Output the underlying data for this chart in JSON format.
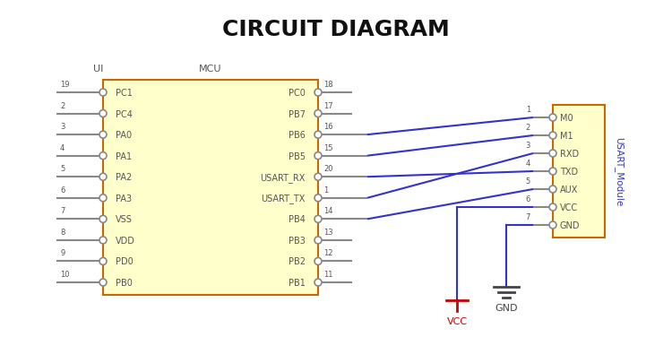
{
  "title": "CIRCUIT DIAGRAM",
  "title_fontsize": 18,
  "title_fontweight": "bold",
  "bg_color": "#ffffff",
  "mcu_fill": "#ffffcc",
  "mcu_edge": "#cc6600",
  "usart_fill": "#ffffcc",
  "usart_edge": "#cc6600",
  "mcu_label": "MCU",
  "ui_label": "UI",
  "usart_label": "USART_Module",
  "pin_color": "#888888",
  "wire_color": "#3333cc",
  "vcc_color": "#cc0000",
  "gnd_color": "#444444",
  "text_color": "#555555",
  "left_pins": [
    {
      "num": "19",
      "name": "PC1"
    },
    {
      "num": "2",
      "name": "PC4"
    },
    {
      "num": "3",
      "name": "PA0"
    },
    {
      "num": "4",
      "name": "PA1"
    },
    {
      "num": "5",
      "name": "PA2"
    },
    {
      "num": "6",
      "name": "PA3"
    },
    {
      "num": "7",
      "name": "VSS"
    },
    {
      "num": "8",
      "name": "VDD"
    },
    {
      "num": "9",
      "name": "PD0"
    },
    {
      "num": "10",
      "name": "PB0"
    }
  ],
  "right_pins": [
    {
      "num": "18",
      "name": "PC0",
      "connected": false
    },
    {
      "num": "17",
      "name": "PB7",
      "connected": false
    },
    {
      "num": "16",
      "name": "PB6",
      "connected": true
    },
    {
      "num": "15",
      "name": "PB5",
      "connected": true
    },
    {
      "num": "20",
      "name": "USART_RX",
      "connected": true
    },
    {
      "num": "1",
      "name": "USART_TX",
      "connected": true
    },
    {
      "num": "14",
      "name": "PB4",
      "connected": true
    },
    {
      "num": "13",
      "name": "PB3",
      "connected": false
    },
    {
      "num": "12",
      "name": "PB2",
      "connected": false
    },
    {
      "num": "11",
      "name": "PB1",
      "connected": false
    }
  ],
  "usart_pins": [
    {
      "num": "1",
      "name": "M0"
    },
    {
      "num": "2",
      "name": "M1"
    },
    {
      "num": "3",
      "name": "RXD"
    },
    {
      "num": "4",
      "name": "TXD"
    },
    {
      "num": "5",
      "name": "AUX"
    },
    {
      "num": "6",
      "name": "VCC"
    },
    {
      "num": "7",
      "name": "GND"
    }
  ]
}
